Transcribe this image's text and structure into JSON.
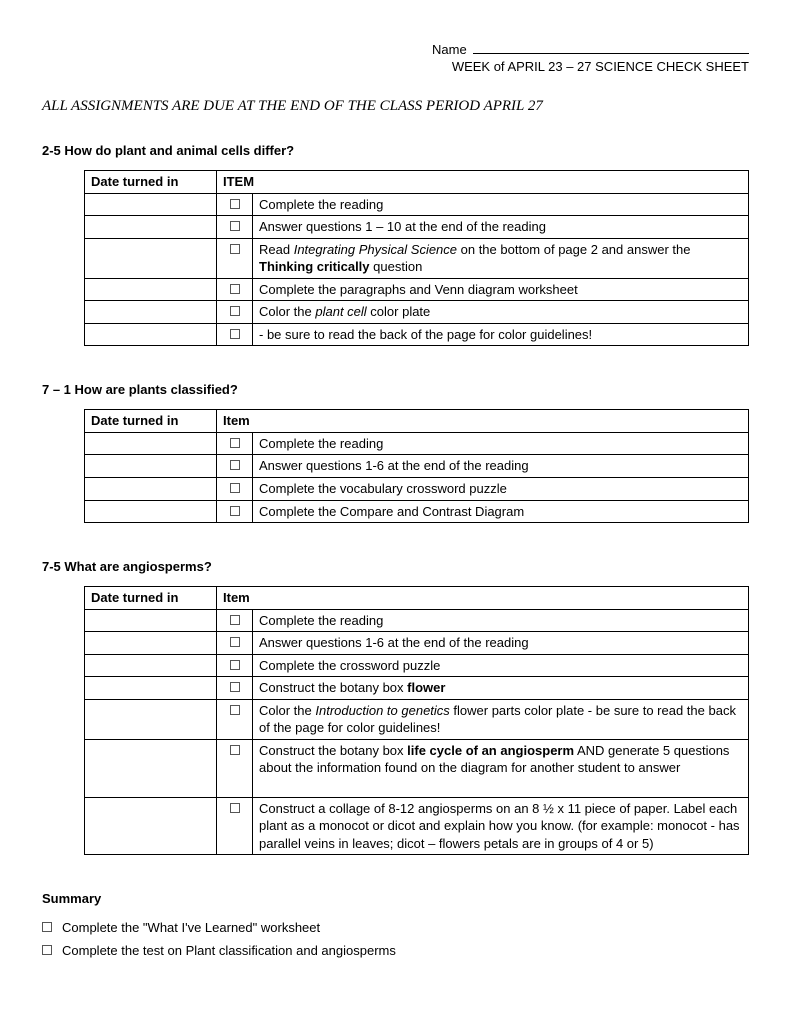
{
  "header": {
    "name_label": "Name",
    "subtitle": "WEEK of APRIL 23 – 27 SCIENCE CHECK SHEET"
  },
  "due_line": "ALL ASSIGNMENTS ARE DUE AT THE END OF THE CLASS PERIOD APRIL 27",
  "sections": [
    {
      "title": "2-5 How do plant and animal cells differ?",
      "col1": "Date turned in",
      "col2": "ITEM",
      "rows": [
        {
          "html": "Complete the reading"
        },
        {
          "html": "Answer questions 1 – 10 at the end of the reading"
        },
        {
          "html": "Read <span class='italic'>Integrating Physical Science</span> on the bottom of page 2 and answer the <span class='bold'>Thinking critically</span> question"
        },
        {
          "html": "Complete the paragraphs and Venn diagram worksheet"
        },
        {
          "html": "Color the <span class='italic'>plant cell</span>  color plate"
        },
        {
          "html": "- be sure to read the back of the page for color guidelines!"
        }
      ]
    },
    {
      "title": "7 – 1 How are plants classified?",
      "col1": "Date turned in",
      "col2": "Item",
      "rows": [
        {
          "html": "Complete the reading"
        },
        {
          "html": "Answer questions 1-6 at the end of the reading"
        },
        {
          "html": "Complete the vocabulary crossword puzzle"
        },
        {
          "html": "Complete the Compare and Contrast Diagram"
        }
      ]
    },
    {
      "title": "7-5 What are angiosperms?",
      "col1": "Date turned in",
      "col2": "Item",
      "rows": [
        {
          "html": "Complete the reading"
        },
        {
          "html": "Answer questions 1-6 at the end of the reading"
        },
        {
          "html": "Complete the crossword puzzle"
        },
        {
          "html": "Construct the botany box <span class='bold'>flower</span>"
        },
        {
          "html": "Color the <span class='italic'>Introduction to genetics</span> flower parts color plate - be sure to read the back of the page for color guidelines!"
        },
        {
          "html": "Construct the botany box <span class='bold'>life cycle of an angiosperm</span> AND generate 5 questions about the information found on the diagram for another student to answer<br><br>"
        },
        {
          "html": "Construct a collage of 8-12 angiosperms on an 8 ½ x 11 piece of paper.  Label each plant as a monocot or dicot and explain how you know.  (for example: monocot - has parallel veins in leaves; dicot – flowers petals are in groups of 4 or 5)"
        }
      ]
    }
  ],
  "summary": {
    "title": "Summary",
    "items": [
      "Complete the \"What I've Learned\" worksheet",
      "Complete the test on Plant classification and angiosperms"
    ]
  }
}
